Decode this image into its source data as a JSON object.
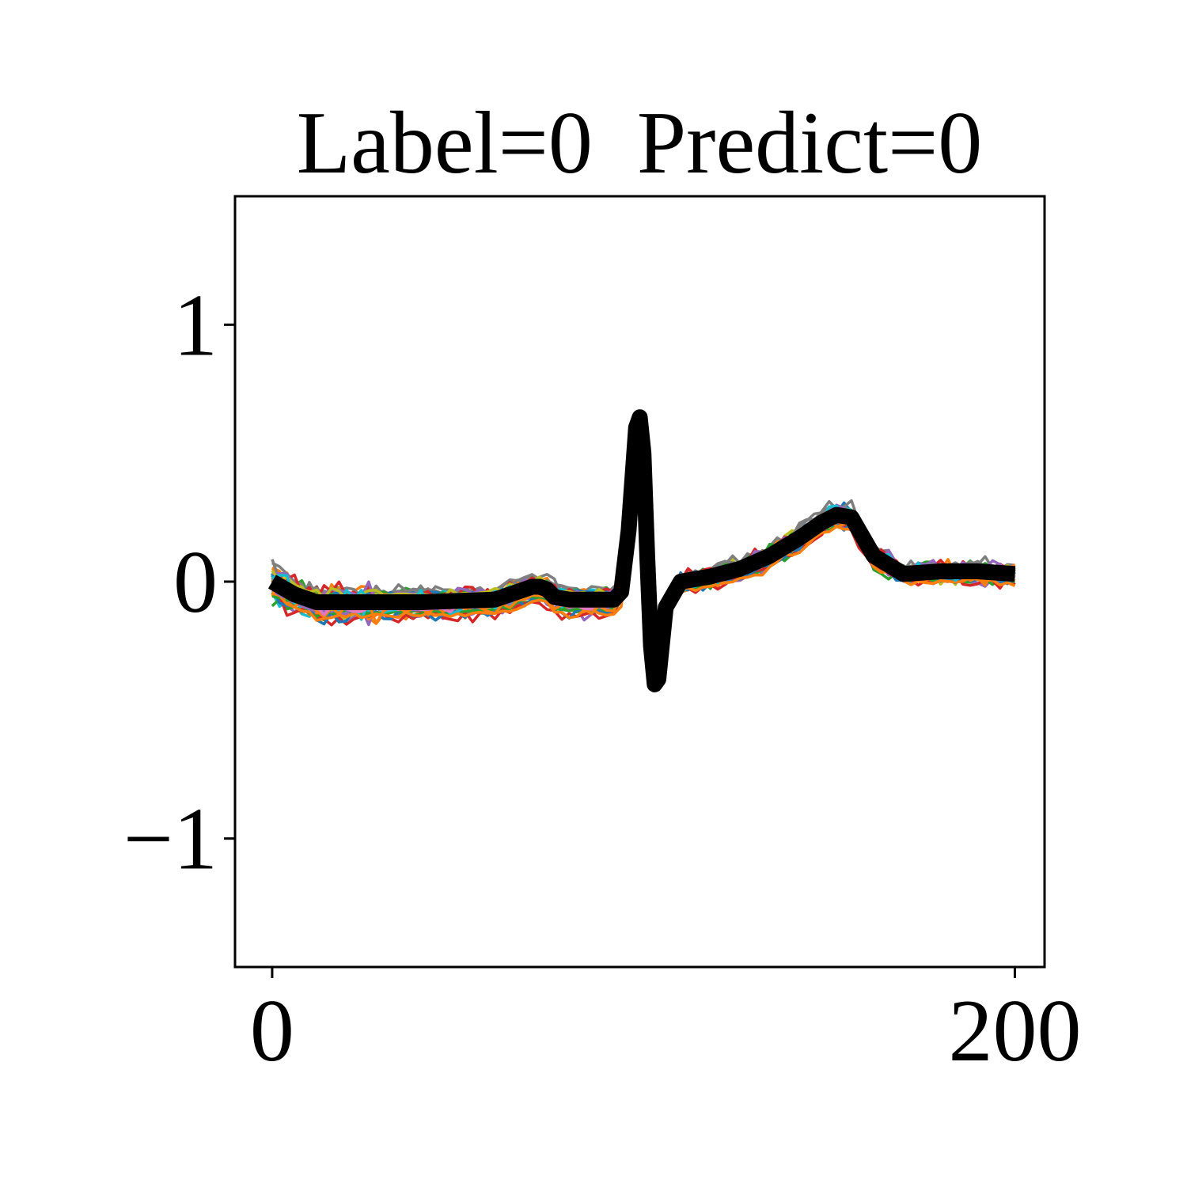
{
  "chart_data": {
    "type": "line",
    "title": "Label=0  Predict=0",
    "xlabel": "",
    "ylabel": "",
    "xlim": [
      -10,
      208
    ],
    "ylim": [
      -1.5,
      1.5
    ],
    "xticks": [
      0,
      200
    ],
    "xtick_labels": [
      "0",
      "200"
    ],
    "yticks": [
      -1,
      0,
      1
    ],
    "ytick_labels": [
      "−1",
      "0",
      "1"
    ],
    "grid": false,
    "legend": "none",
    "palette": [
      "#1f77b4",
      "#ff7f0e",
      "#2ca02c",
      "#d62728",
      "#9467bd",
      "#8c564b",
      "#e377c2",
      "#7f7f7f",
      "#bcbd22",
      "#17becf"
    ],
    "mean_color": "#000000",
    "n_samples": 60,
    "mean_series": {
      "name": "",
      "x": [
        0,
        6,
        12,
        20,
        40,
        60,
        66,
        70,
        72,
        74,
        76,
        80,
        88,
        92,
        94,
        96,
        98,
        99,
        100,
        101,
        102,
        103,
        104,
        106,
        110,
        118,
        126,
        134,
        142,
        148,
        152,
        156,
        162,
        170,
        180,
        190,
        200
      ],
      "values": [
        0.0,
        -0.05,
        -0.08,
        -0.08,
        -0.08,
        -0.07,
        -0.04,
        -0.02,
        -0.02,
        -0.03,
        -0.06,
        -0.07,
        -0.07,
        -0.07,
        -0.04,
        0.2,
        0.6,
        0.64,
        0.5,
        0.1,
        -0.25,
        -0.4,
        -0.38,
        -0.1,
        0.0,
        0.02,
        0.05,
        0.1,
        0.17,
        0.23,
        0.26,
        0.25,
        0.1,
        0.03,
        0.04,
        0.04,
        0.03
      ]
    }
  }
}
